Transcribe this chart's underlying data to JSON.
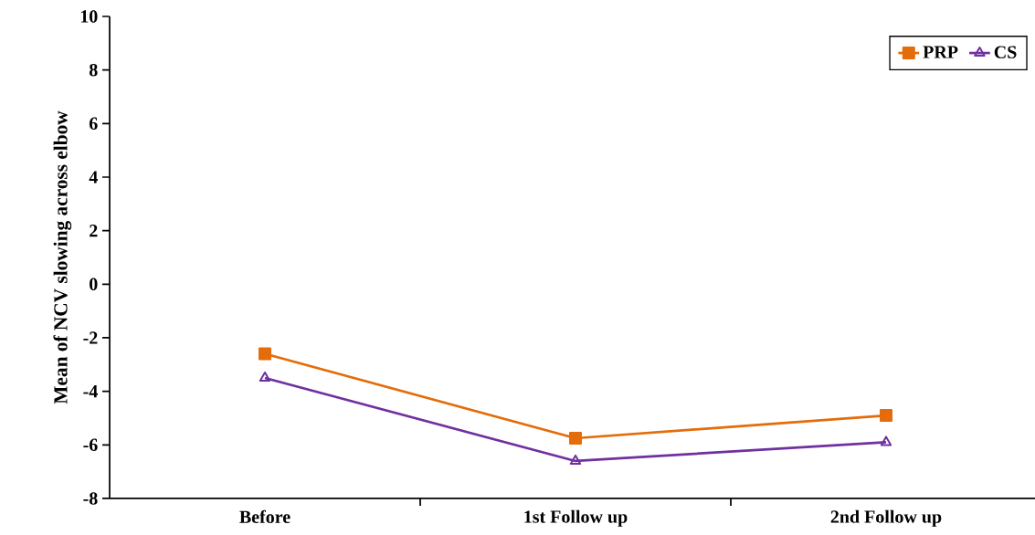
{
  "chart_data": {
    "type": "line",
    "ylabel": "Mean of NCV slowing across elbow",
    "categories": [
      "Before",
      "1st  Follow up",
      "2nd  Follow up"
    ],
    "series": [
      {
        "name": "PRP",
        "color": "#e46c0a",
        "marker": "square",
        "values": [
          -2.6,
          -5.75,
          -4.9
        ]
      },
      {
        "name": "CS",
        "color": "#7030a0",
        "marker": "triangle",
        "values": [
          -3.5,
          -6.6,
          -5.9
        ]
      }
    ],
    "ylim": [
      -8,
      10
    ],
    "yticks": [
      -8,
      -6,
      -4,
      -2,
      0,
      2,
      4,
      6,
      8,
      10
    ],
    "grid": false,
    "legend": "top right",
    "line_style": "solid"
  }
}
